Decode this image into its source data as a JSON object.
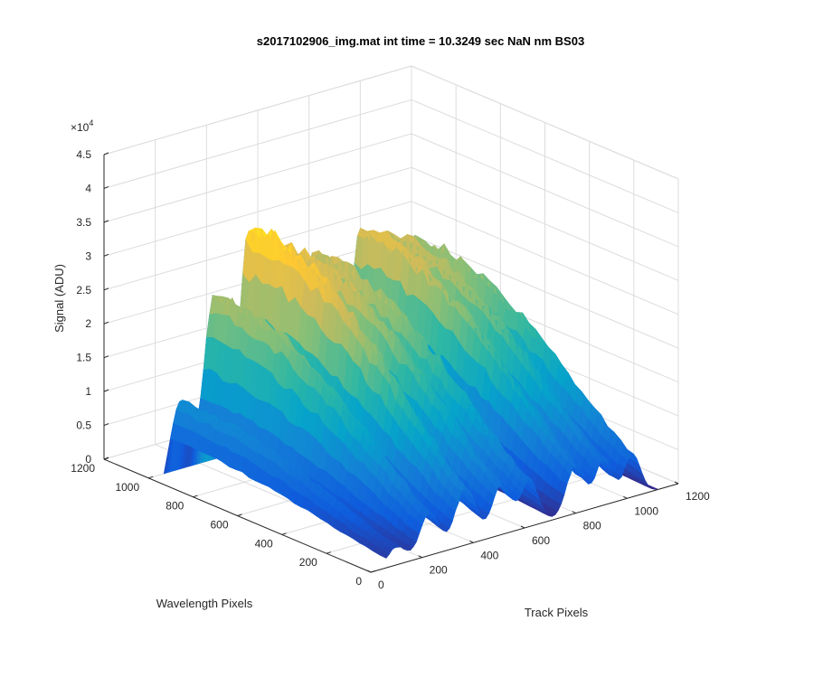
{
  "chart_data": {
    "type": "surface",
    "title": "s2017102906_img.mat int time = 10.3249 sec  NaN nm BS03",
    "xlabel": "Track Pixels",
    "ylabel": "Wavelength Pixels",
    "zlabel": "Signal (ADU)",
    "z_exponent_label": "×10",
    "z_exponent_power": "4",
    "xlim": [
      0,
      1200
    ],
    "ylim": [
      0,
      1200
    ],
    "zlim": [
      0,
      45000
    ],
    "x_ticks": [
      "0",
      "200",
      "400",
      "600",
      "800",
      "1000",
      "1200"
    ],
    "y_ticks": [
      "0",
      "200",
      "400",
      "600",
      "800",
      "1000",
      "1200"
    ],
    "z_ticks": [
      "0",
      "0.5",
      "1",
      "1.5",
      "2",
      "2.5",
      "3",
      "3.5",
      "4",
      "4.5"
    ],
    "grid": true,
    "colormap": "parula",
    "colors": [
      "#352a87",
      "#0f5cdd",
      "#1481d6",
      "#06a4ca",
      "#2eb7a4",
      "#87bf77",
      "#d1bb59",
      "#fec832",
      "#f9fb0e"
    ],
    "peaks": [
      {
        "track_center": 100,
        "width": 70,
        "peak_signal": 11000
      },
      {
        "track_center": 230,
        "width": 75,
        "peak_signal": 26000
      },
      {
        "track_center": 370,
        "width": 80,
        "peak_signal": 35000
      },
      {
        "track_center": 510,
        "width": 75,
        "peak_signal": 30000
      },
      {
        "track_center": 620,
        "width": 70,
        "peak_signal": 28000
      },
      {
        "track_center": 800,
        "width": 70,
        "peak_signal": 30000
      },
      {
        "track_center": 910,
        "width": 65,
        "peak_signal": 28000
      },
      {
        "track_center": 1020,
        "width": 65,
        "peak_signal": 26000
      }
    ]
  }
}
